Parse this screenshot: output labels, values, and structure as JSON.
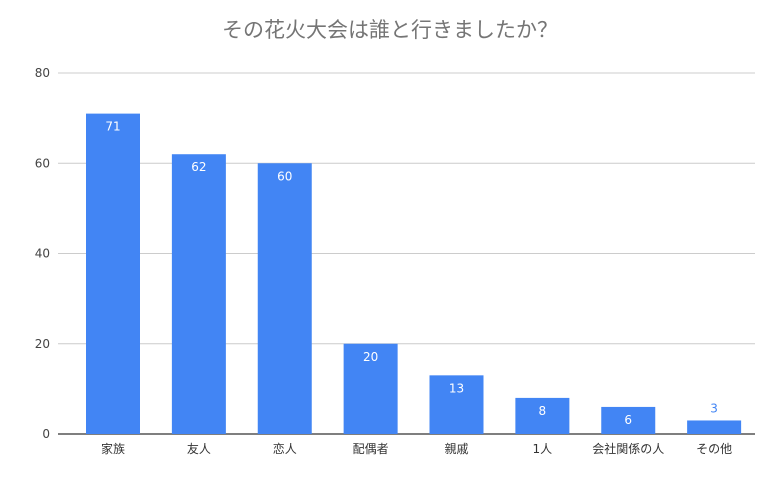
{
  "chart_data": {
    "type": "bar",
    "title": "その花火大会は誰と行きましたか？",
    "categories": [
      "家族",
      "友人",
      "恋人",
      "配偶者",
      "親戚",
      "1人",
      "会社関係の人",
      "その他"
    ],
    "values": [
      71,
      62,
      60,
      20,
      13,
      8,
      6,
      3
    ],
    "ylim": [
      0,
      80
    ],
    "yticks": [
      0,
      20,
      40,
      60,
      80
    ],
    "grid": true,
    "bar_color": "#4285f4",
    "xlabel": "",
    "ylabel": ""
  }
}
